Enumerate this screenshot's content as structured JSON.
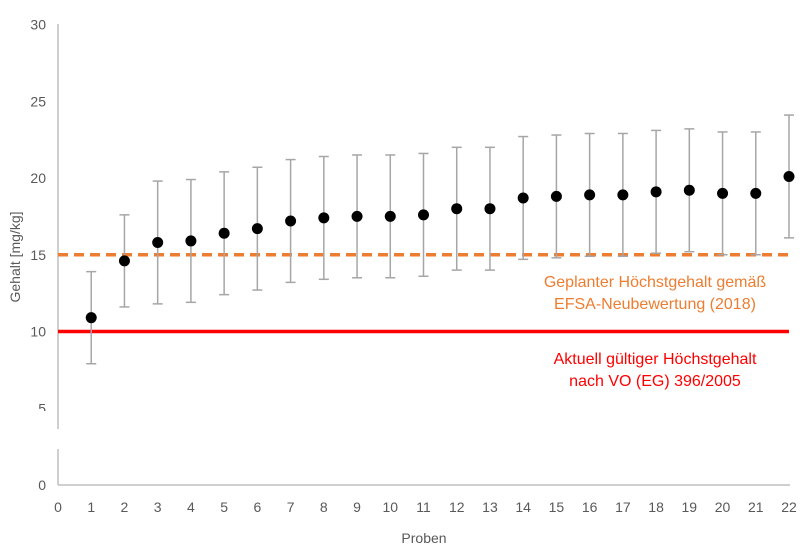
{
  "chart_data": {
    "type": "scatter",
    "title": "",
    "xlabel": "Proben",
    "ylabel": "Gehalt [mg/kg]",
    "xlim": [
      0,
      22
    ],
    "ylim": [
      0,
      30
    ],
    "y_axis_break": [
      3.5,
      2.5
    ],
    "x_ticks": [
      "0",
      "1",
      "2",
      "3",
      "4",
      "5",
      "6",
      "7",
      "8",
      "9",
      "10",
      "11",
      "12",
      "13",
      "14",
      "15",
      "16",
      "17",
      "18",
      "19",
      "20",
      "21",
      "22"
    ],
    "y_ticks": [
      "0",
      "5",
      "10",
      "15",
      "20",
      "25",
      "30"
    ],
    "grid": false,
    "legend": null,
    "series": [
      {
        "name": "Proben",
        "marker": "circle",
        "color": "#000000",
        "x": [
          1,
          2,
          3,
          4,
          5,
          6,
          7,
          8,
          9,
          10,
          11,
          12,
          13,
          14,
          15,
          16,
          17,
          18,
          19,
          20,
          21,
          22
        ],
        "y": [
          10.9,
          14.6,
          15.8,
          15.9,
          16.4,
          16.7,
          17.2,
          17.4,
          17.5,
          17.5,
          17.6,
          18.0,
          18.0,
          18.7,
          18.8,
          18.9,
          18.9,
          19.1,
          19.2,
          19.0,
          19.0,
          20.1
        ],
        "error": [
          3,
          3,
          4,
          4,
          4,
          4,
          4,
          4,
          4,
          4,
          4,
          4,
          4,
          4,
          4,
          4,
          4,
          4,
          4,
          4,
          4,
          4
        ],
        "error_color": "#a6a6a6"
      }
    ],
    "reference_lines": [
      {
        "name": "planned-limit",
        "y": 15,
        "style": "dashed",
        "color": "#ed7d31",
        "label_lines": [
          "Geplanter Höchstgehalt gemäß",
          "EFSA-Neubewertung (2018)"
        ]
      },
      {
        "name": "current-limit",
        "y": 10,
        "style": "solid",
        "color": "#ff0000",
        "label_lines": [
          "Aktuell gültiger Höchstgehalt",
          "nach VO (EG) 396/2005"
        ]
      }
    ]
  },
  "labels": {
    "xlabel": "Proben",
    "ylabel": "Gehalt [mg/kg]",
    "planned_line1": "Geplanter Höchstgehalt gemäß",
    "planned_line2": "EFSA-Neubewertung (2018)",
    "current_line1": "Aktuell gültiger Höchstgehalt",
    "current_line2": "nach VO (EG) 396/2005"
  }
}
